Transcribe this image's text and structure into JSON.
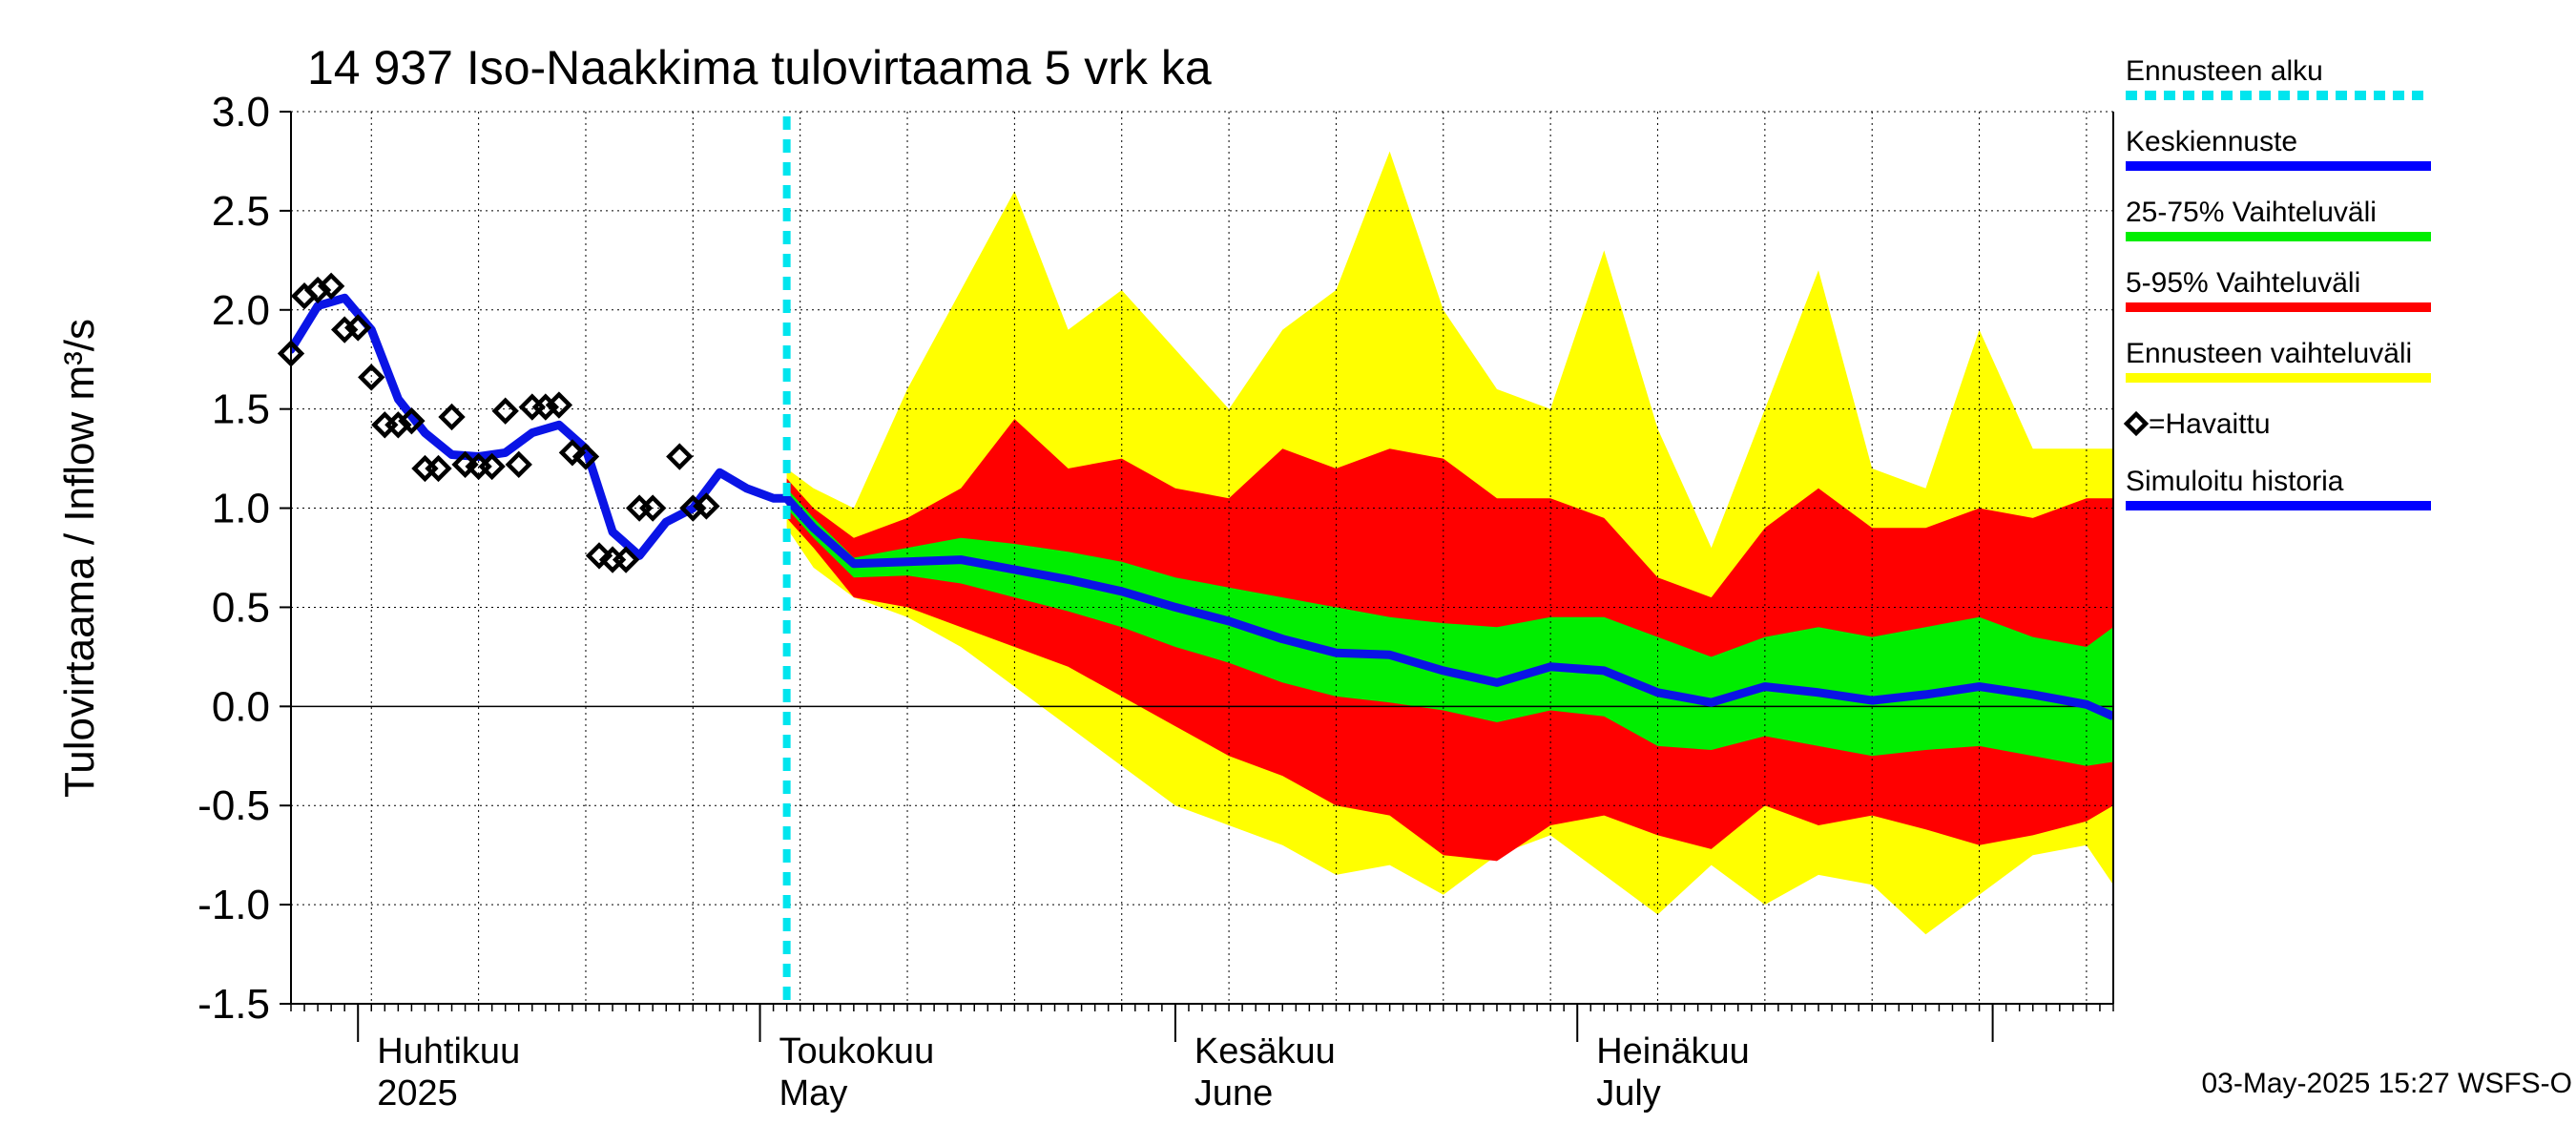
{
  "chart_data": {
    "type": "area",
    "title": "14 937 Iso-Naakkima tulovirtaama 5 vrk ka",
    "ylabel": "Tulovirtaama / Inflow    m³/s",
    "ylim": [
      -1.5,
      3.0
    ],
    "yticks": [
      "3.0",
      "2.5",
      "2.0",
      "1.5",
      "1.0",
      "0.5",
      "0.0",
      "-0.5",
      "-1.0",
      "-1.5"
    ],
    "xlim": [
      "2025-03-27",
      "2025-08-10"
    ],
    "forecast_start": "2025-05-03",
    "months": [
      {
        "fi": "Huhtikuu",
        "en": "2025",
        "date": "2025-04-01"
      },
      {
        "fi": "Toukokuu",
        "en": "May",
        "date": "2025-05-01"
      },
      {
        "fi": "Kesäkuu",
        "en": "June",
        "date": "2025-06-01"
      },
      {
        "fi": "Heinäkuu",
        "en": "July",
        "date": "2025-07-01"
      }
    ],
    "series": [
      {
        "name": "Havaittu",
        "x": [
          "2025-03-27",
          "2025-03-28",
          "2025-03-29",
          "2025-03-30",
          "2025-03-31",
          "2025-04-01",
          "2025-04-02",
          "2025-04-03",
          "2025-04-04",
          "2025-04-05",
          "2025-04-06",
          "2025-04-07",
          "2025-04-08",
          "2025-04-09",
          "2025-04-10",
          "2025-04-11",
          "2025-04-12",
          "2025-04-13",
          "2025-04-14",
          "2025-04-15",
          "2025-04-16",
          "2025-04-17",
          "2025-04-18",
          "2025-04-19",
          "2025-04-20",
          "2025-04-21",
          "2025-04-22",
          "2025-04-23",
          "2025-04-24",
          "2025-04-25",
          "2025-04-26",
          "2025-04-27",
          "2025-04-28",
          "2025-04-29",
          "2025-04-30",
          "2025-05-01",
          "2025-05-02"
        ],
        "y": [
          1.78,
          2.07,
          2.1,
          2.12,
          1.9,
          1.91,
          1.66,
          1.42,
          1.42,
          1.44,
          1.2,
          1.2,
          1.46,
          1.22,
          1.21,
          1.21,
          1.49,
          1.22,
          1.51,
          1.51,
          1.52,
          1.28,
          1.26,
          0.76,
          0.74,
          0.74,
          1.0,
          1.0,
          null,
          1.26,
          1.0,
          1.01,
          null,
          null,
          null,
          null,
          null
        ]
      },
      {
        "name": "Simuloitu historia",
        "x": [
          "2025-03-27",
          "2025-03-29",
          "2025-03-31",
          "2025-04-02",
          "2025-04-04",
          "2025-04-06",
          "2025-04-08",
          "2025-04-10",
          "2025-04-12",
          "2025-04-14",
          "2025-04-16",
          "2025-04-18",
          "2025-04-20",
          "2025-04-22",
          "2025-04-24",
          "2025-04-26",
          "2025-04-28",
          "2025-04-30",
          "2025-05-02",
          "2025-05-03"
        ],
        "y": [
          1.8,
          2.02,
          2.06,
          1.9,
          1.55,
          1.38,
          1.27,
          1.26,
          1.28,
          1.38,
          1.42,
          1.3,
          0.88,
          0.76,
          0.93,
          1.0,
          1.18,
          1.1,
          1.05,
          1.05
        ]
      },
      {
        "name": "Keskiennuste",
        "x": [
          "2025-05-03",
          "2025-05-05",
          "2025-05-08",
          "2025-05-12",
          "2025-05-16",
          "2025-05-20",
          "2025-05-24",
          "2025-05-28",
          "2025-06-01",
          "2025-06-05",
          "2025-06-09",
          "2025-06-13",
          "2025-06-17",
          "2025-06-21",
          "2025-06-25",
          "2025-06-29",
          "2025-07-03",
          "2025-07-07",
          "2025-07-11",
          "2025-07-15",
          "2025-07-19",
          "2025-07-23",
          "2025-07-27",
          "2025-07-31",
          "2025-08-04",
          "2025-08-08",
          "2025-08-10"
        ],
        "y": [
          1.05,
          0.9,
          0.72,
          0.73,
          0.74,
          0.69,
          0.64,
          0.58,
          0.5,
          0.43,
          0.34,
          0.27,
          0.26,
          0.18,
          0.12,
          0.2,
          0.18,
          0.07,
          0.02,
          0.1,
          0.07,
          0.03,
          0.06,
          0.1,
          0.06,
          0.01,
          -0.05
        ]
      }
    ],
    "bands": {
      "x": [
        "2025-05-03",
        "2025-05-05",
        "2025-05-08",
        "2025-05-12",
        "2025-05-16",
        "2025-05-20",
        "2025-05-24",
        "2025-05-28",
        "2025-06-01",
        "2025-06-05",
        "2025-06-09",
        "2025-06-13",
        "2025-06-17",
        "2025-06-21",
        "2025-06-25",
        "2025-06-29",
        "2025-07-03",
        "2025-07-07",
        "2025-07-11",
        "2025-07-15",
        "2025-07-19",
        "2025-07-23",
        "2025-07-27",
        "2025-07-31",
        "2025-08-04",
        "2025-08-08",
        "2025-08-10"
      ],
      "ennuste_hi": [
        1.2,
        1.1,
        1.0,
        1.6,
        2.1,
        2.6,
        1.9,
        2.1,
        1.8,
        1.5,
        1.9,
        2.1,
        2.8,
        2.0,
        1.6,
        1.5,
        2.3,
        1.4,
        0.8,
        1.5,
        2.2,
        1.2,
        1.1,
        1.9,
        1.3,
        1.3,
        1.3
      ],
      "p95": [
        1.15,
        1.0,
        0.85,
        0.95,
        1.1,
        1.45,
        1.2,
        1.25,
        1.1,
        1.05,
        1.3,
        1.2,
        1.3,
        1.25,
        1.05,
        1.05,
        0.95,
        0.65,
        0.55,
        0.9,
        1.1,
        0.9,
        0.9,
        1.0,
        0.95,
        1.05,
        1.05
      ],
      "p75": [
        1.1,
        0.95,
        0.75,
        0.8,
        0.85,
        0.82,
        0.78,
        0.73,
        0.65,
        0.6,
        0.55,
        0.5,
        0.45,
        0.42,
        0.4,
        0.45,
        0.45,
        0.35,
        0.25,
        0.35,
        0.4,
        0.35,
        0.4,
        0.45,
        0.35,
        0.3,
        0.4
      ],
      "p25": [
        1.0,
        0.85,
        0.65,
        0.66,
        0.62,
        0.55,
        0.48,
        0.4,
        0.3,
        0.22,
        0.12,
        0.05,
        0.02,
        -0.02,
        -0.08,
        -0.02,
        -0.05,
        -0.2,
        -0.22,
        -0.15,
        -0.2,
        -0.25,
        -0.22,
        -0.2,
        -0.25,
        -0.3,
        -0.28
      ],
      "p5": [
        0.95,
        0.8,
        0.55,
        0.5,
        0.4,
        0.3,
        0.2,
        0.05,
        -0.1,
        -0.25,
        -0.35,
        -0.5,
        -0.55,
        -0.75,
        -0.78,
        -0.6,
        -0.55,
        -0.65,
        -0.72,
        -0.5,
        -0.6,
        -0.55,
        -0.62,
        -0.7,
        -0.65,
        -0.58,
        -0.5
      ],
      "ennuste_lo": [
        0.9,
        0.7,
        0.55,
        0.45,
        0.3,
        0.1,
        -0.1,
        -0.3,
        -0.5,
        -0.6,
        -0.7,
        -0.85,
        -0.8,
        -0.95,
        -0.75,
        -0.65,
        -0.85,
        -1.05,
        -0.8,
        -1.0,
        -0.85,
        -0.9,
        -1.15,
        -0.95,
        -0.75,
        -0.7,
        -0.9
      ]
    },
    "legend": [
      {
        "label": "Ennusteen alku",
        "color": "#00e5ee",
        "style": "dotted"
      },
      {
        "label": "Keskiennuste",
        "color": "#0000ff",
        "style": "line"
      },
      {
        "label": "25-75% Vaihteluväli",
        "color": "#00ee00",
        "style": "line"
      },
      {
        "label": "5-95% Vaihteluväli",
        "color": "#ff0000",
        "style": "line"
      },
      {
        "label": "Ennusteen vaihteluväli",
        "color": "#ffff00",
        "style": "line"
      },
      {
        "label": "=Havaittu",
        "color": "#000000",
        "style": "diamond"
      },
      {
        "label": "Simuloitu historia",
        "color": "#0000ff",
        "style": "line"
      }
    ],
    "colors": {
      "yellow": "#ffff00",
      "red": "#ff0000",
      "green": "#00ee00",
      "blue": "#0a14e6",
      "cyan": "#00e5ee"
    },
    "timestamp": "03-May-2025 15:27 WSFS-O"
  }
}
